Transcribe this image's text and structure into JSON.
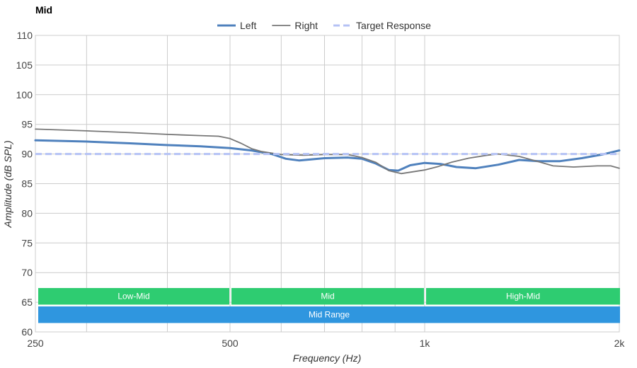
{
  "chart_data": {
    "type": "line",
    "title": "Mid",
    "xlabel": "Frequency (Hz)",
    "ylabel": "Amplitude (dB SPL)",
    "xscale": "log",
    "xlim": [
      250,
      2000
    ],
    "ylim": [
      60,
      110
    ],
    "x_ticks": [
      {
        "value": 250,
        "label": "250"
      },
      {
        "value": 500,
        "label": "500"
      },
      {
        "value": 1000,
        "label": "1k"
      },
      {
        "value": 2000,
        "label": "2k"
      }
    ],
    "y_ticks": [
      {
        "value": 110,
        "label": "110"
      },
      {
        "value": 105,
        "label": "105"
      },
      {
        "value": 100,
        "label": "100"
      },
      {
        "value": 95,
        "label": "95"
      },
      {
        "value": 90,
        "label": "90"
      },
      {
        "value": 85,
        "label": "85"
      },
      {
        "value": 80,
        "label": "80"
      },
      {
        "value": 75,
        "label": "75"
      },
      {
        "value": 70,
        "label": "70"
      },
      {
        "value": 65,
        "label": "65"
      },
      {
        "value": 60,
        "label": "60"
      }
    ],
    "grid": true,
    "legend_position": "top-center",
    "series": [
      {
        "name": "Left",
        "color": "#4f81bd",
        "style": "solid-thick",
        "points": [
          [
            250,
            92.3
          ],
          [
            300,
            92.1
          ],
          [
            350,
            91.8
          ],
          [
            400,
            91.5
          ],
          [
            450,
            91.3
          ],
          [
            500,
            91.0
          ],
          [
            540,
            90.6
          ],
          [
            580,
            90.0
          ],
          [
            610,
            89.2
          ],
          [
            640,
            88.9
          ],
          [
            700,
            89.3
          ],
          [
            760,
            89.4
          ],
          [
            800,
            89.2
          ],
          [
            840,
            88.4
          ],
          [
            880,
            87.3
          ],
          [
            910,
            87.2
          ],
          [
            950,
            88.1
          ],
          [
            1000,
            88.5
          ],
          [
            1060,
            88.3
          ],
          [
            1120,
            87.8
          ],
          [
            1200,
            87.6
          ],
          [
            1300,
            88.2
          ],
          [
            1400,
            89.0
          ],
          [
            1500,
            88.8
          ],
          [
            1620,
            88.8
          ],
          [
            1750,
            89.3
          ],
          [
            1880,
            89.9
          ],
          [
            2000,
            90.6
          ]
        ]
      },
      {
        "name": "Right",
        "color": "#777777",
        "style": "solid-thin",
        "points": [
          [
            250,
            94.2
          ],
          [
            300,
            93.9
          ],
          [
            350,
            93.6
          ],
          [
            400,
            93.3
          ],
          [
            450,
            93.1
          ],
          [
            480,
            93.0
          ],
          [
            500,
            92.6
          ],
          [
            520,
            91.8
          ],
          [
            540,
            90.9
          ],
          [
            560,
            90.4
          ],
          [
            600,
            89.9
          ],
          [
            650,
            89.8
          ],
          [
            700,
            89.9
          ],
          [
            760,
            89.9
          ],
          [
            800,
            89.4
          ],
          [
            840,
            88.6
          ],
          [
            880,
            87.2
          ],
          [
            920,
            86.7
          ],
          [
            960,
            87.0
          ],
          [
            1000,
            87.3
          ],
          [
            1050,
            87.9
          ],
          [
            1100,
            88.6
          ],
          [
            1170,
            89.3
          ],
          [
            1250,
            89.8
          ],
          [
            1300,
            90.0
          ],
          [
            1400,
            89.6
          ],
          [
            1500,
            88.7
          ],
          [
            1580,
            88.0
          ],
          [
            1700,
            87.8
          ],
          [
            1850,
            88.0
          ],
          [
            1940,
            88.0
          ],
          [
            2000,
            87.6
          ]
        ]
      },
      {
        "name": "Target Response",
        "color": "#b5c2f5",
        "style": "dashed",
        "points": [
          [
            250,
            90
          ],
          [
            2000,
            90
          ]
        ]
      }
    ],
    "bands": [
      {
        "label": "Low-Mid",
        "x": [
          250,
          500
        ],
        "color": "#2ecc71"
      },
      {
        "label": "Mid",
        "x": [
          500,
          1000
        ],
        "color": "#2ecc71"
      },
      {
        "label": "High-Mid",
        "x": [
          1000,
          2000
        ],
        "color": "#2ecc71"
      },
      {
        "label": "Mid Range",
        "x": [
          250,
          2000
        ],
        "color": "#2f96df"
      }
    ],
    "x_gridlines": [
      250,
      300,
      400,
      500,
      600,
      700,
      800,
      900,
      1000,
      2000
    ]
  }
}
